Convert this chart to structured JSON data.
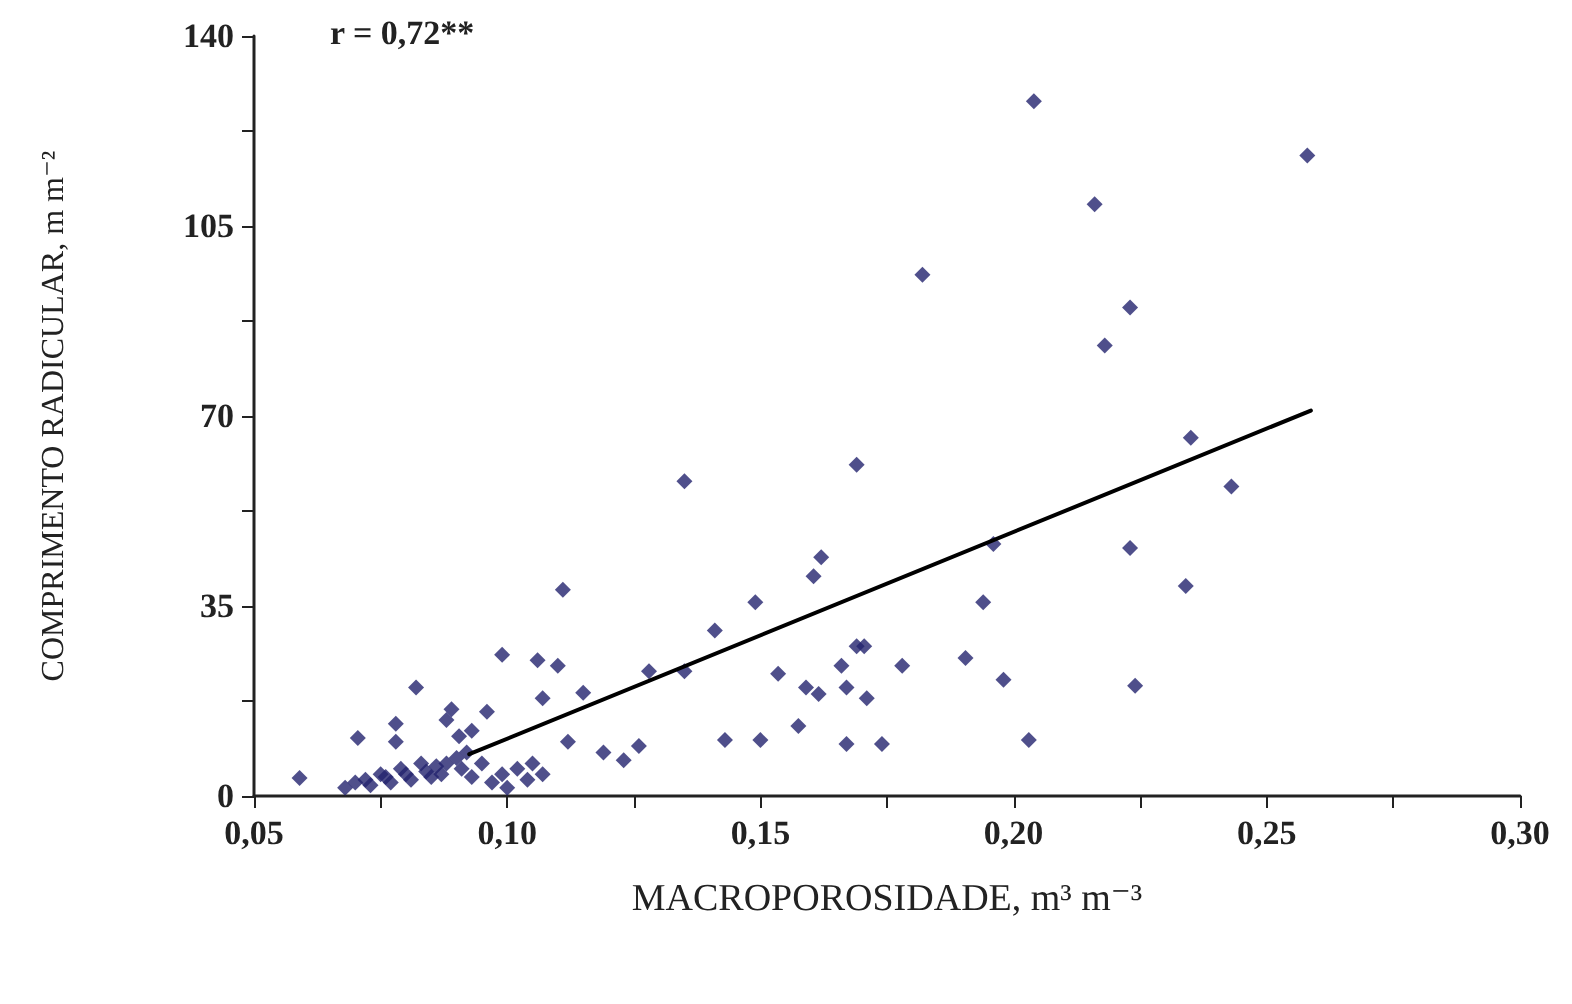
{
  "chart_data": {
    "type": "scatter",
    "xlabel": "MACROPOROSIDADE, m³ m⁻³",
    "ylabel": "COMPRIMENTO RADICULAR, m m⁻²",
    "annotations": [
      "r = 0,72**"
    ],
    "xlim": [
      0.05,
      0.3
    ],
    "xticks": [
      {
        "value": 0.05,
        "label": "0,05"
      },
      {
        "value": 0.075,
        "label": null
      },
      {
        "value": 0.1,
        "label": "0,10"
      },
      {
        "value": 0.125,
        "label": null
      },
      {
        "value": 0.15,
        "label": "0,15"
      },
      {
        "value": 0.175,
        "label": null
      },
      {
        "value": 0.2,
        "label": "0,20"
      },
      {
        "value": 0.225,
        "label": null
      },
      {
        "value": 0.25,
        "label": "0,25"
      },
      {
        "value": 0.275,
        "label": null
      },
      {
        "value": 0.3,
        "label": "0,30"
      }
    ],
    "ylim": [
      0,
      140
    ],
    "yticks": [
      0,
      {
        "value": 17.5,
        "label": null
      },
      35,
      {
        "value": 52.5,
        "label": null
      },
      70,
      {
        "value": 87.5,
        "label": null
      },
      105,
      {
        "value": 122.5,
        "label": null
      },
      140
    ],
    "grid": false,
    "marker": "diamond",
    "series": [
      {
        "color": "#23236e",
        "x": [
          0.059,
          0.0705,
          0.078,
          0.078,
          0.082,
          0.089,
          0.0905,
          0.096,
          0.099,
          0.106,
          0.11,
          0.107,
          0.111,
          0.112,
          0.115,
          0.119,
          0.123,
          0.126,
          0.128,
          0.068,
          0.07,
          0.072,
          0.073,
          0.075,
          0.076,
          0.077,
          0.079,
          0.08,
          0.081,
          0.083,
          0.084,
          0.085,
          0.086,
          0.087,
          0.088,
          0.09,
          0.091,
          0.092,
          0.093,
          0.095,
          0.097,
          0.099,
          0.1,
          0.102,
          0.104,
          0.105,
          0.107,
          0.093,
          0.088,
          0.135,
          0.135,
          0.141,
          0.149,
          0.143,
          0.15,
          0.1535,
          0.1575,
          0.159,
          0.1615,
          0.1605,
          0.162,
          0.169,
          0.166,
          0.167,
          0.169,
          0.1705,
          0.171,
          0.167,
          0.174,
          0.178,
          0.1905,
          0.194,
          0.198,
          0.203,
          0.196,
          0.204,
          0.258,
          0.216,
          0.182,
          0.223,
          0.218,
          0.235,
          0.243,
          0.223,
          0.234,
          0.224
        ],
        "values": [
          3.3,
          10.7,
          13.3,
          10,
          20,
          16,
          11,
          15.5,
          26,
          25,
          24,
          18,
          38,
          10,
          19,
          8,
          6.6,
          9.2,
          23,
          1.5,
          2.5,
          3,
          2,
          4,
          3.5,
          2.5,
          5,
          4,
          3,
          6,
          4.5,
          3.5,
          5.5,
          4,
          6,
          7,
          5,
          8,
          3.5,
          6,
          2.5,
          4,
          1.5,
          5,
          3,
          6,
          4,
          12,
          14,
          58,
          23,
          30.5,
          35.7,
          10.3,
          10.3,
          22.5,
          12.9,
          20,
          18.8,
          40.5,
          44,
          61,
          24,
          20,
          27.6,
          27.6,
          18,
          9.6,
          9.6,
          24,
          25.4,
          35.7,
          21.4,
          10.3,
          46.4,
          128,
          118,
          109,
          96,
          90,
          83,
          66,
          57,
          45.7,
          38.7,
          20.3
        ]
      },
      {
        "type": "line",
        "color": "#000000",
        "marker": "none",
        "line_style": "solid",
        "x": [
          0.0925,
          0.2587
        ],
        "values": [
          7.7,
          71
        ]
      }
    ]
  }
}
